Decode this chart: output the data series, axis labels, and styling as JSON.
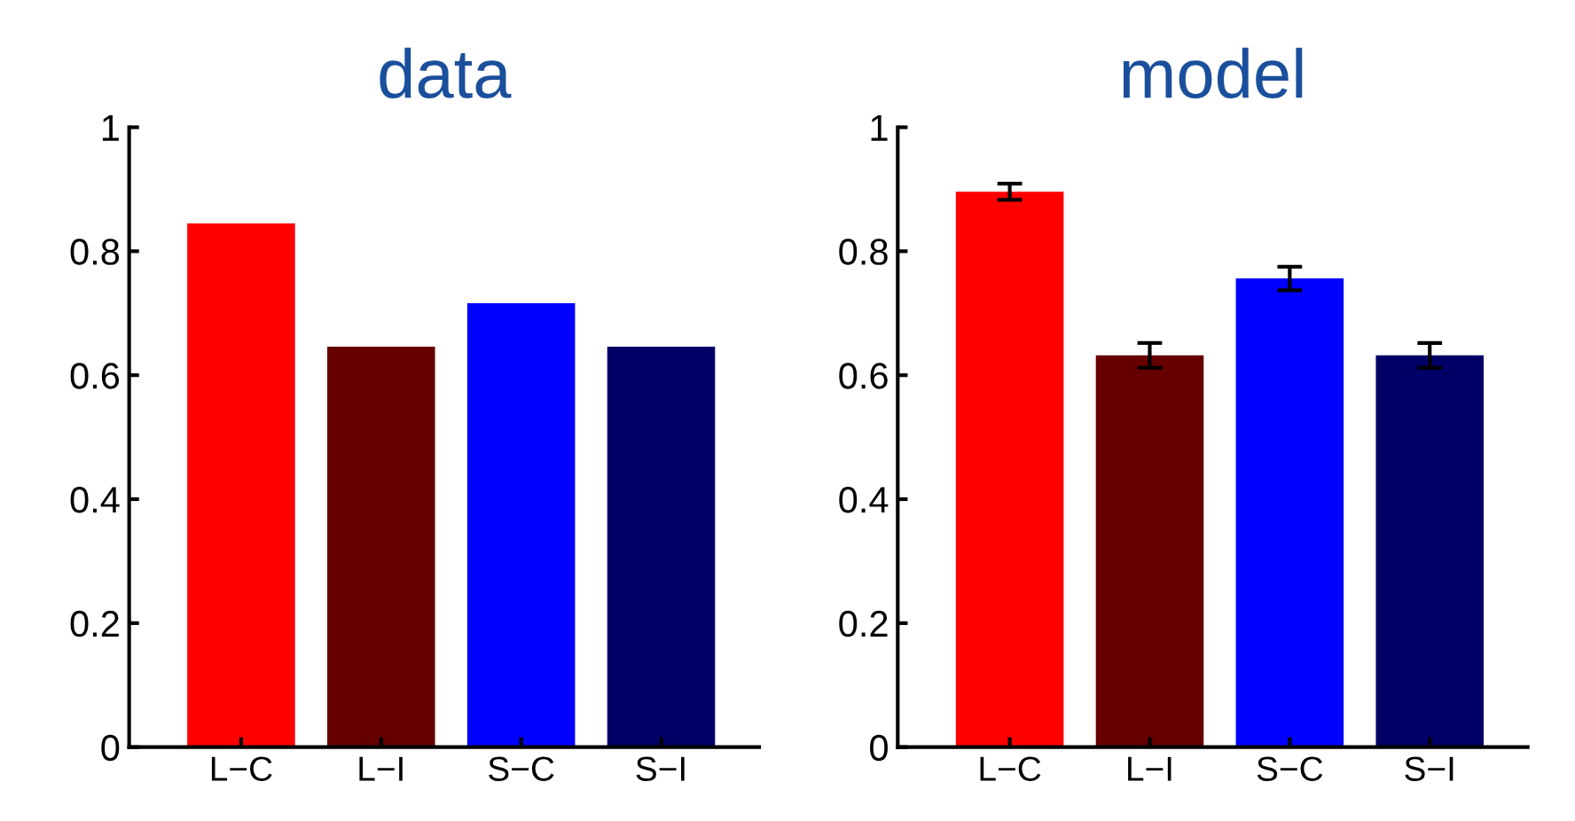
{
  "chart_data": [
    {
      "type": "bar",
      "title": "data",
      "categories": [
        "L−C",
        "L−I",
        "S−C",
        "S−I"
      ],
      "values": [
        0.845,
        0.646,
        0.716,
        0.646
      ],
      "colors": [
        "#ff0000",
        "#660000",
        "#0000ff",
        "#000066"
      ],
      "ylim": [
        0,
        1
      ],
      "yticks": [
        0,
        0.2,
        0.4,
        0.6,
        0.8,
        1
      ],
      "grid": false
    },
    {
      "type": "bar",
      "title": "model",
      "categories": [
        "L−C",
        "L−I",
        "S−C",
        "S−I"
      ],
      "values": [
        0.896,
        0.632,
        0.756,
        0.632
      ],
      "errors": [
        0.013,
        0.02,
        0.019,
        0.02
      ],
      "colors": [
        "#ff0000",
        "#660000",
        "#0000ff",
        "#000066"
      ],
      "ylim": [
        0,
        1
      ],
      "yticks": [
        0,
        0.2,
        0.4,
        0.6,
        0.8,
        1
      ],
      "grid": false
    }
  ]
}
